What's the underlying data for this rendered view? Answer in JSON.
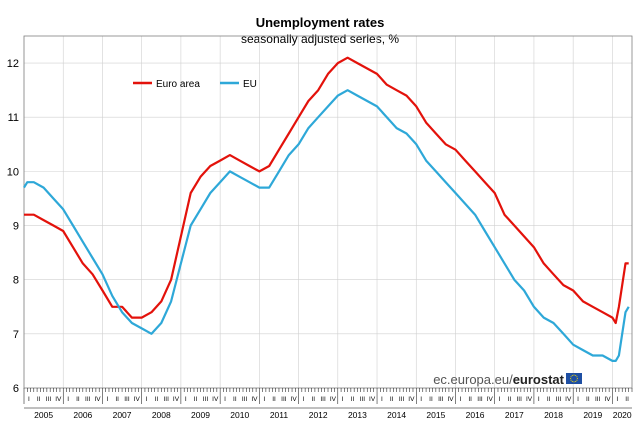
{
  "chart_data": {
    "type": "line",
    "title": "Unemployment rates",
    "subtitle": "seasonally adjusted series, %",
    "xlabel": "",
    "ylabel": "",
    "ylim": [
      6,
      12.5
    ],
    "yticks": [
      6,
      7,
      8,
      9,
      10,
      11,
      12
    ],
    "x_start": "2005-01",
    "x_end": "2020-05",
    "years": [
      "2005",
      "2006",
      "2007",
      "2008",
      "2009",
      "2010",
      "2011",
      "2012",
      "2013",
      "2014",
      "2015",
      "2016",
      "2017",
      "2018",
      "2019",
      "2020"
    ],
    "quarter_labels": [
      "I",
      "II",
      "III",
      "IV"
    ],
    "grid": true,
    "legend_position": "top-left",
    "series": [
      {
        "name": "Euro area",
        "color": "#e3120b",
        "points": [
          [
            "2005-01",
            9.2
          ],
          [
            "2005-04",
            9.2
          ],
          [
            "2005-07",
            9.1
          ],
          [
            "2005-10",
            9.0
          ],
          [
            "2006-01",
            8.9
          ],
          [
            "2006-04",
            8.6
          ],
          [
            "2006-07",
            8.3
          ],
          [
            "2006-10",
            8.1
          ],
          [
            "2007-01",
            7.8
          ],
          [
            "2007-04",
            7.5
          ],
          [
            "2007-07",
            7.5
          ],
          [
            "2007-10",
            7.3
          ],
          [
            "2008-01",
            7.3
          ],
          [
            "2008-04",
            7.4
          ],
          [
            "2008-07",
            7.6
          ],
          [
            "2008-10",
            8.0
          ],
          [
            "2009-01",
            8.8
          ],
          [
            "2009-04",
            9.6
          ],
          [
            "2009-07",
            9.9
          ],
          [
            "2009-10",
            10.1
          ],
          [
            "2010-01",
            10.2
          ],
          [
            "2010-04",
            10.3
          ],
          [
            "2010-07",
            10.2
          ],
          [
            "2010-10",
            10.1
          ],
          [
            "2011-01",
            10.0
          ],
          [
            "2011-04",
            10.1
          ],
          [
            "2011-07",
            10.4
          ],
          [
            "2011-10",
            10.7
          ],
          [
            "2012-01",
            11.0
          ],
          [
            "2012-04",
            11.3
          ],
          [
            "2012-07",
            11.5
          ],
          [
            "2012-10",
            11.8
          ],
          [
            "2013-01",
            12.0
          ],
          [
            "2013-04",
            12.1
          ],
          [
            "2013-07",
            12.0
          ],
          [
            "2013-10",
            11.9
          ],
          [
            "2014-01",
            11.8
          ],
          [
            "2014-04",
            11.6
          ],
          [
            "2014-07",
            11.5
          ],
          [
            "2014-10",
            11.4
          ],
          [
            "2015-01",
            11.2
          ],
          [
            "2015-04",
            10.9
          ],
          [
            "2015-07",
            10.7
          ],
          [
            "2015-10",
            10.5
          ],
          [
            "2016-01",
            10.4
          ],
          [
            "2016-04",
            10.2
          ],
          [
            "2016-07",
            10.0
          ],
          [
            "2016-10",
            9.8
          ],
          [
            "2017-01",
            9.6
          ],
          [
            "2017-04",
            9.2
          ],
          [
            "2017-07",
            9.0
          ],
          [
            "2017-10",
            8.8
          ],
          [
            "2018-01",
            8.6
          ],
          [
            "2018-04",
            8.3
          ],
          [
            "2018-07",
            8.1
          ],
          [
            "2018-10",
            7.9
          ],
          [
            "2019-01",
            7.8
          ],
          [
            "2019-04",
            7.6
          ],
          [
            "2019-07",
            7.5
          ],
          [
            "2019-10",
            7.4
          ],
          [
            "2020-01",
            7.3
          ],
          [
            "2020-02",
            7.2
          ],
          [
            "2020-03",
            7.5
          ],
          [
            "2020-04",
            7.9
          ],
          [
            "2020-05",
            8.3
          ],
          [
            "2020-06",
            8.3
          ]
        ]
      },
      {
        "name": "EU",
        "color": "#2ea8d8",
        "points": [
          [
            "2005-01",
            9.7
          ],
          [
            "2005-02",
            9.8
          ],
          [
            "2005-04",
            9.8
          ],
          [
            "2005-07",
            9.7
          ],
          [
            "2005-10",
            9.5
          ],
          [
            "2006-01",
            9.3
          ],
          [
            "2006-04",
            9.0
          ],
          [
            "2006-07",
            8.7
          ],
          [
            "2006-10",
            8.4
          ],
          [
            "2007-01",
            8.1
          ],
          [
            "2007-04",
            7.7
          ],
          [
            "2007-07",
            7.4
          ],
          [
            "2007-10",
            7.2
          ],
          [
            "2008-01",
            7.1
          ],
          [
            "2008-04",
            7.0
          ],
          [
            "2008-07",
            7.2
          ],
          [
            "2008-10",
            7.6
          ],
          [
            "2009-01",
            8.3
          ],
          [
            "2009-04",
            9.0
          ],
          [
            "2009-07",
            9.3
          ],
          [
            "2009-10",
            9.6
          ],
          [
            "2010-01",
            9.8
          ],
          [
            "2010-04",
            10.0
          ],
          [
            "2010-07",
            9.9
          ],
          [
            "2010-10",
            9.8
          ],
          [
            "2011-01",
            9.7
          ],
          [
            "2011-04",
            9.7
          ],
          [
            "2011-07",
            10.0
          ],
          [
            "2011-10",
            10.3
          ],
          [
            "2012-01",
            10.5
          ],
          [
            "2012-04",
            10.8
          ],
          [
            "2012-07",
            11.0
          ],
          [
            "2012-10",
            11.2
          ],
          [
            "2013-01",
            11.4
          ],
          [
            "2013-04",
            11.5
          ],
          [
            "2013-07",
            11.4
          ],
          [
            "2013-10",
            11.3
          ],
          [
            "2014-01",
            11.2
          ],
          [
            "2014-04",
            11.0
          ],
          [
            "2014-07",
            10.8
          ],
          [
            "2014-10",
            10.7
          ],
          [
            "2015-01",
            10.5
          ],
          [
            "2015-04",
            10.2
          ],
          [
            "2015-07",
            10.0
          ],
          [
            "2015-10",
            9.8
          ],
          [
            "2016-01",
            9.6
          ],
          [
            "2016-04",
            9.4
          ],
          [
            "2016-07",
            9.2
          ],
          [
            "2016-10",
            8.9
          ],
          [
            "2017-01",
            8.6
          ],
          [
            "2017-04",
            8.3
          ],
          [
            "2017-07",
            8.0
          ],
          [
            "2017-10",
            7.8
          ],
          [
            "2018-01",
            7.5
          ],
          [
            "2018-04",
            7.3
          ],
          [
            "2018-07",
            7.2
          ],
          [
            "2018-10",
            7.0
          ],
          [
            "2019-01",
            6.8
          ],
          [
            "2019-04",
            6.7
          ],
          [
            "2019-07",
            6.6
          ],
          [
            "2019-10",
            6.6
          ],
          [
            "2020-01",
            6.5
          ],
          [
            "2020-02",
            6.5
          ],
          [
            "2020-03",
            6.6
          ],
          [
            "2020-04",
            7.0
          ],
          [
            "2020-05",
            7.4
          ],
          [
            "2020-06",
            7.5
          ]
        ]
      }
    ]
  },
  "source": {
    "site_text": "ec.europa.eu/",
    "brand_text": "eurostat",
    "flag_color": "#1e4fa3",
    "star_color": "#ffde00"
  }
}
